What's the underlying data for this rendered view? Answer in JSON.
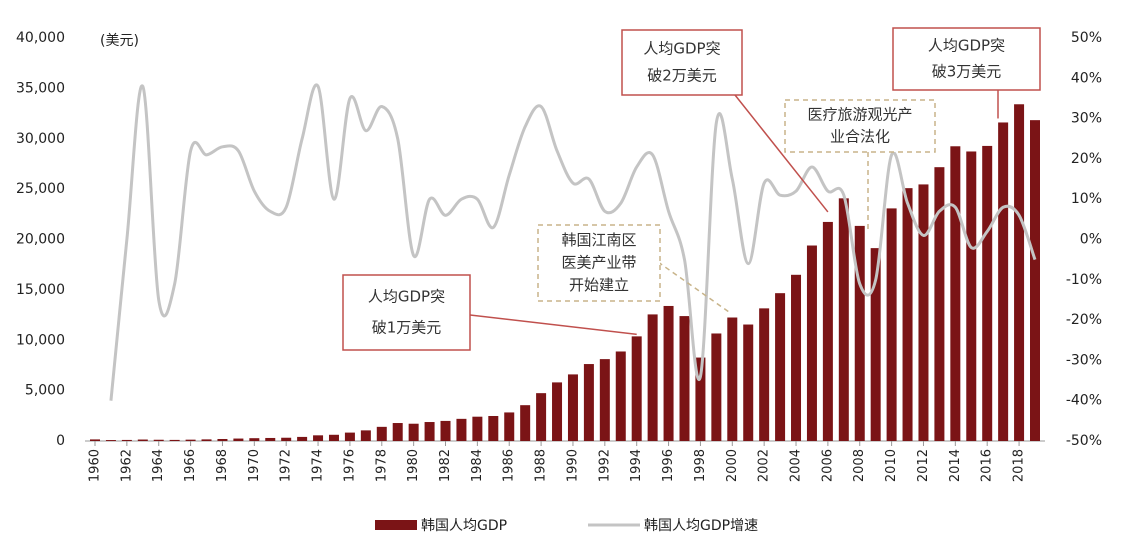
{
  "chart_data": {
    "type": "bar_line",
    "y_label": "(美元)",
    "categories": [
      "1960",
      null,
      "1962",
      null,
      "1964",
      null,
      "1966",
      null,
      "1968",
      null,
      "1970",
      null,
      "1972",
      null,
      "1974",
      null,
      "1976",
      null,
      "1978",
      null,
      "1980",
      null,
      "1982",
      null,
      "1984",
      null,
      "1986",
      null,
      "1988",
      null,
      "1990",
      null,
      "1992",
      null,
      "1994",
      null,
      "1996",
      null,
      "1998",
      null,
      "2000",
      null,
      "2002",
      null,
      "2004",
      null,
      "2006",
      null,
      "2008",
      null,
      "2010",
      null,
      "2012",
      null,
      "2014",
      null,
      "2016",
      null,
      "2018",
      null
    ],
    "series": [
      {
        "name": "韩国人均GDP",
        "type": "bar",
        "color": "#7b1416",
        "values": [
          158,
          94,
          106,
          146,
          124,
          109,
          133,
          161,
          199,
          243,
          279,
          301,
          324,
          406,
          563,
          617,
          834,
          1055,
          1405,
          1784,
          1715,
          1883,
          1993,
          2199,
          2413,
          2482,
          2835,
          3555,
          4749,
          5817,
          6610,
          7637,
          8127,
          8885,
          10385,
          12565,
          13403,
          12398,
          8282,
          10672,
          12257,
          11561,
          13165,
          14673,
          16496,
          19403,
          21743,
          24086,
          21350,
          19144,
          23087,
          25096,
          25467,
          27178,
          29253,
          28737,
          29288,
          31616,
          33423,
          31846
        ]
      },
      {
        "name": "韩国人均GDP增速",
        "type": "line",
        "axis": "y2",
        "color": "#c4c4c4",
        "values": [
          null,
          -40,
          0,
          38,
          -15,
          -11,
          22,
          21,
          23,
          22,
          12,
          7,
          8,
          25,
          38,
          10,
          35,
          27,
          33,
          25,
          -4,
          10,
          6,
          10,
          10,
          3,
          16,
          28,
          33,
          22,
          14,
          15,
          7,
          9,
          18,
          21,
          7,
          -5,
          -34,
          29,
          15,
          -6,
          14,
          11,
          12,
          18,
          12,
          11,
          -11,
          -10,
          21,
          9,
          1,
          7,
          8,
          -2,
          2,
          8,
          6,
          -5
        ]
      }
    ],
    "ylim": [
      0,
      40000
    ],
    "yticks": [
      0,
      {
        "value": 5000,
        "label": "5,000"
      },
      {
        "value": 10000,
        "label": "10,000"
      },
      {
        "value": 15000,
        "label": "15,000"
      },
      {
        "value": 20000,
        "label": "20,000"
      },
      {
        "value": 25000,
        "label": "25,000"
      },
      {
        "value": 30000,
        "label": "30,000"
      },
      {
        "value": 35000,
        "label": "35,000"
      },
      {
        "value": 40000,
        "label": "40,000"
      }
    ],
    "y2lim": [
      -50,
      50
    ],
    "y2ticks": [
      {
        "value": -50,
        "label": "-50%"
      },
      {
        "value": -40,
        "label": "-40%"
      },
      {
        "value": -30,
        "label": "-30%"
      },
      {
        "value": -20,
        "label": "-20%"
      },
      {
        "value": -10,
        "label": "-10%"
      },
      {
        "value": 0,
        "label": "0%"
      },
      {
        "value": 10,
        "label": "10%"
      },
      {
        "value": 20,
        "label": "20%"
      },
      {
        "value": 30,
        "label": "30%"
      },
      {
        "value": 40,
        "label": "40%"
      },
      {
        "value": 50,
        "label": "50%"
      }
    ],
    "annotations": [
      {
        "lines": [
          "人均GDP突",
          "破1万美元"
        ]
      },
      {
        "lines": [
          "韩国江南区",
          "医美产业带",
          "开始建立"
        ]
      },
      {
        "lines": [
          "人均GDP突",
          "破2万美元"
        ]
      },
      {
        "lines": [
          "医疗旅游观光产",
          "业合法化"
        ]
      },
      {
        "lines": [
          "人均GDP突",
          "破3万美元"
        ]
      }
    ]
  }
}
